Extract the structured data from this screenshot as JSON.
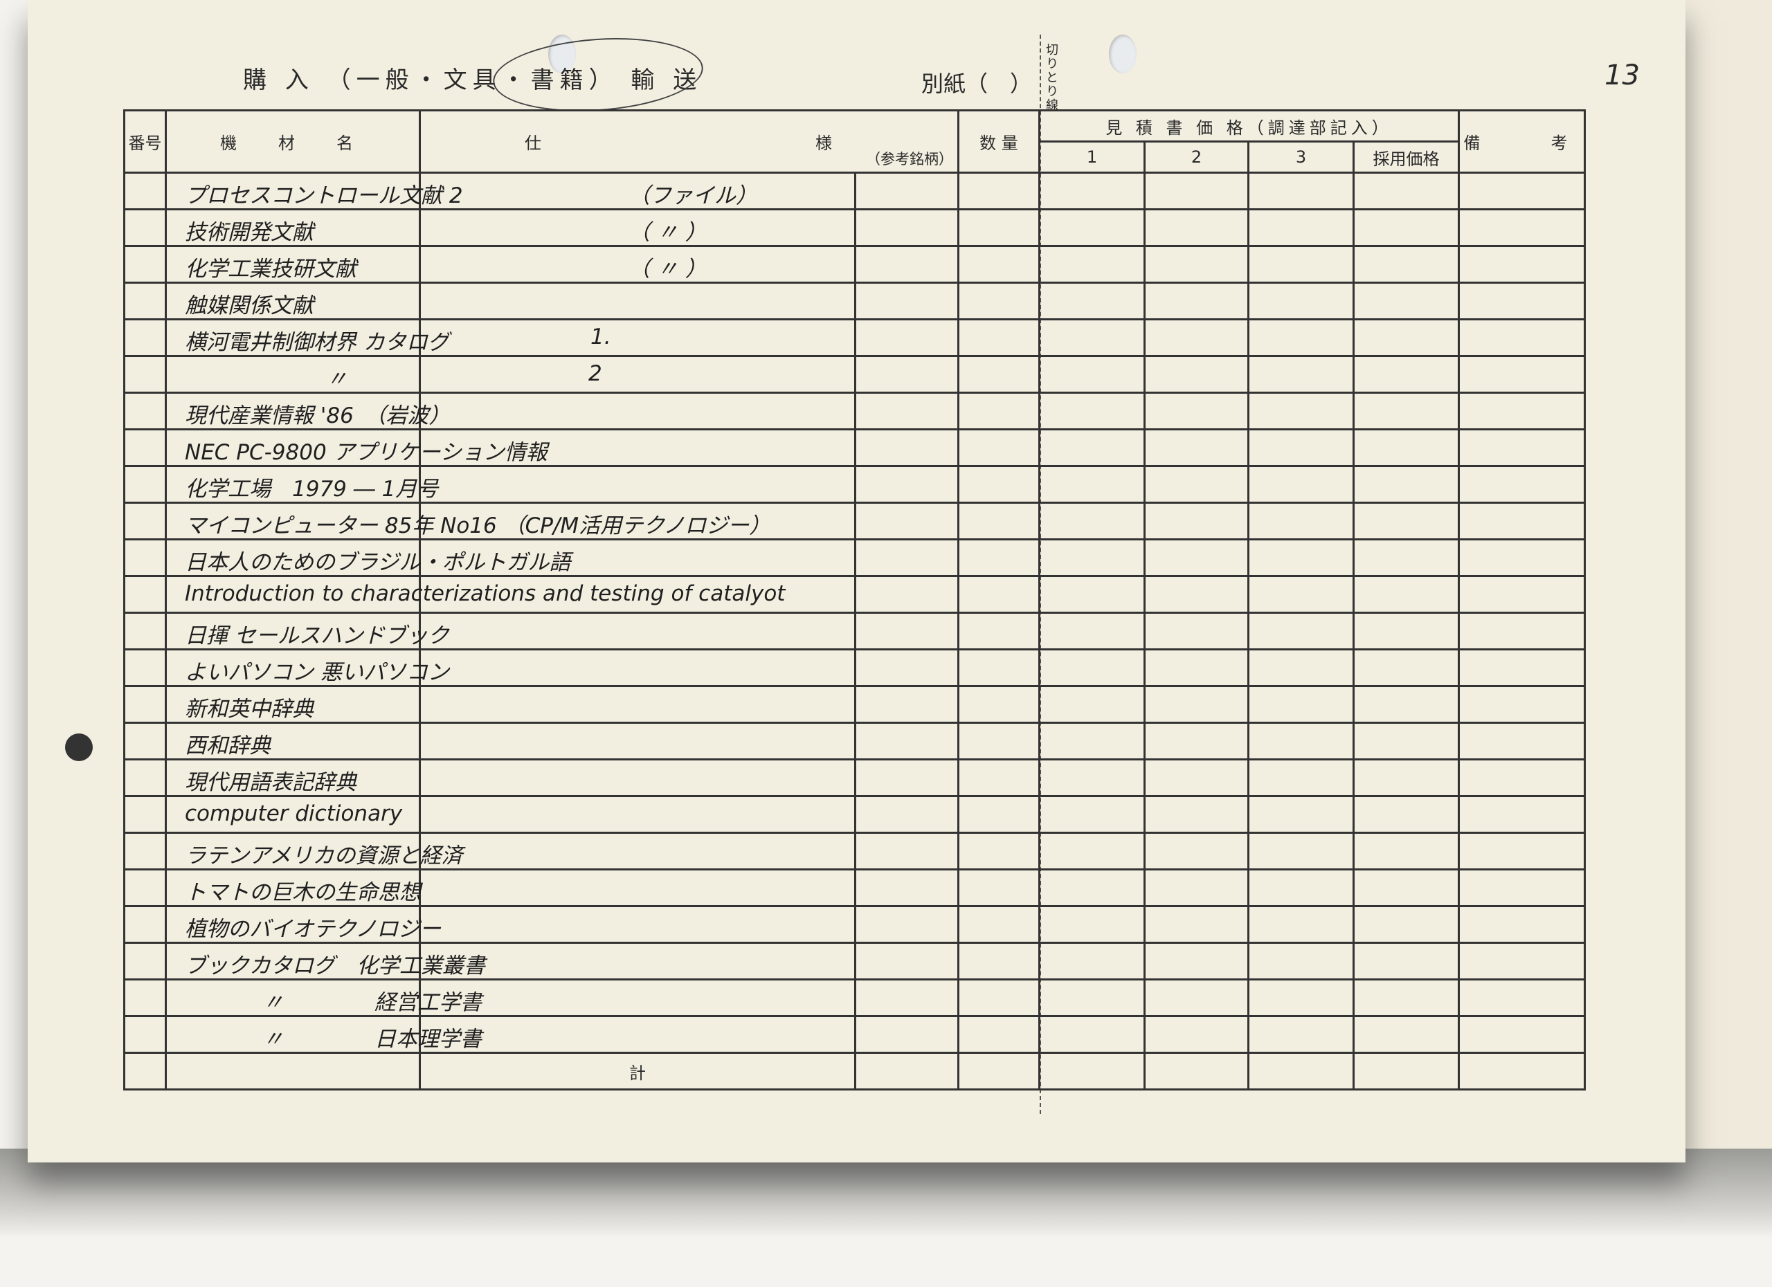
{
  "header": {
    "title": "購 入 （一般・文具・書籍） 輸 送",
    "circled_option": "書籍",
    "attachment_label": "別紙（　）",
    "cut_line_label": "切りとり線",
    "page_number": "13"
  },
  "columns": {
    "number": "番号",
    "item_name": "機　材　名",
    "spec": "仕　　　　　　　　　様",
    "reference_brand": "（参考銘柄）",
    "quantity": "数 量",
    "estimate_group": "見 積 書 価 格（調達部記入）",
    "estimate_1": "1",
    "estimate_2": "2",
    "estimate_3": "3",
    "adopted_price": "採用価格",
    "remarks": "備　　考"
  },
  "rows": [
    {
      "name": "プロセスコントロール文献 2",
      "spec": "（ファイル）"
    },
    {
      "name": "技術開発文献",
      "spec": "（ 〃 ）"
    },
    {
      "name": "化学工業技研文献",
      "spec": "（ 〃 ）"
    },
    {
      "name": "触媒関係文献",
      "spec": ""
    },
    {
      "name": "横河電井制御材界 カタログ",
      "spec": "1."
    },
    {
      "name": "〃",
      "spec": "2"
    },
    {
      "name": "現代産業情報 '86　（岩波）",
      "spec": ""
    },
    {
      "name": "NEC PC-9800 アプリケーション情報",
      "spec": ""
    },
    {
      "name": "化学工場　1979 ― 1月号",
      "spec": ""
    },
    {
      "name": "マイコンピューター 85年 No16 （CP/M活用テクノロジー）",
      "spec": ""
    },
    {
      "name": "日本人のためのブラジル・ポルトガル語",
      "spec": ""
    },
    {
      "name": "Introduction to characterizations and testing of catalyot",
      "spec": ""
    },
    {
      "name": "日揮 セールスハンドブック",
      "spec": ""
    },
    {
      "name": "よいパソコン 悪いパソコン",
      "spec": ""
    },
    {
      "name": "新和英中辞典",
      "spec": ""
    },
    {
      "name": "西和辞典",
      "spec": ""
    },
    {
      "name": "現代用語表記辞典",
      "spec": ""
    },
    {
      "name": "computer dictionary",
      "spec": ""
    },
    {
      "name": "ラテンアメリカの資源と経済",
      "spec": ""
    },
    {
      "name": "トマトの巨木の生命思想",
      "spec": ""
    },
    {
      "name": "植物のバイオテクノロジー",
      "spec": ""
    },
    {
      "name": "ブックカタログ　化学工業叢書",
      "spec": ""
    },
    {
      "name": "〃",
      "spec": "経営工学書"
    },
    {
      "name": "〃",
      "spec": "日本理学書"
    }
  ],
  "total_label": "計"
}
